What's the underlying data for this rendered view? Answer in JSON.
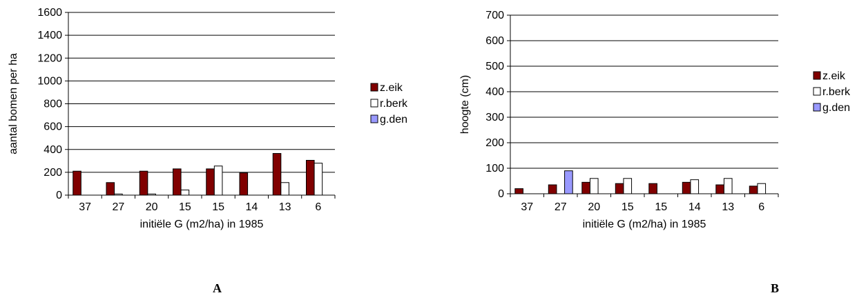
{
  "chart_data": [
    {
      "type": "bar",
      "panel_label": "A",
      "ylabel": "aantal bomen per ha",
      "xlabel": "initiële G (m2/ha) in 1985",
      "ylim": [
        0,
        1600
      ],
      "yticks": [
        0,
        200,
        400,
        600,
        800,
        1000,
        1200,
        1400,
        1600
      ],
      "categories": [
        "37",
        "27",
        "20",
        "15",
        "15",
        "14",
        "13",
        "6"
      ],
      "grid": true,
      "legend_position": "right",
      "series": [
        {
          "name": "z.eik",
          "color": "#800000",
          "values": [
            210,
            110,
            210,
            230,
            230,
            195,
            365,
            305
          ]
        },
        {
          "name": "r.berk",
          "color": "#ffffff",
          "values": [
            0,
            10,
            10,
            45,
            255,
            0,
            110,
            280
          ]
        },
        {
          "name": "g.den",
          "color": "#9999ff",
          "values": [
            0,
            0,
            0,
            0,
            0,
            0,
            0,
            0
          ]
        }
      ]
    },
    {
      "type": "bar",
      "panel_label": "B",
      "ylabel": "hoogte (cm)",
      "xlabel": "initiële G (m2/ha) in 1985",
      "ylim": [
        0,
        700
      ],
      "yticks": [
        0,
        100,
        200,
        300,
        400,
        500,
        600,
        700
      ],
      "categories": [
        "37",
        "27",
        "20",
        "15",
        "15",
        "14",
        "13",
        "6"
      ],
      "grid": true,
      "legend_position": "right",
      "series": [
        {
          "name": "z.eik",
          "color": "#800000",
          "values": [
            20,
            35,
            45,
            40,
            40,
            45,
            35,
            30
          ]
        },
        {
          "name": "r.berk",
          "color": "#ffffff",
          "values": [
            0,
            0,
            60,
            60,
            0,
            55,
            60,
            40
          ]
        },
        {
          "name": "g.den",
          "color": "#9999ff",
          "values": [
            0,
            90,
            0,
            0,
            0,
            0,
            0,
            0
          ]
        }
      ]
    }
  ]
}
